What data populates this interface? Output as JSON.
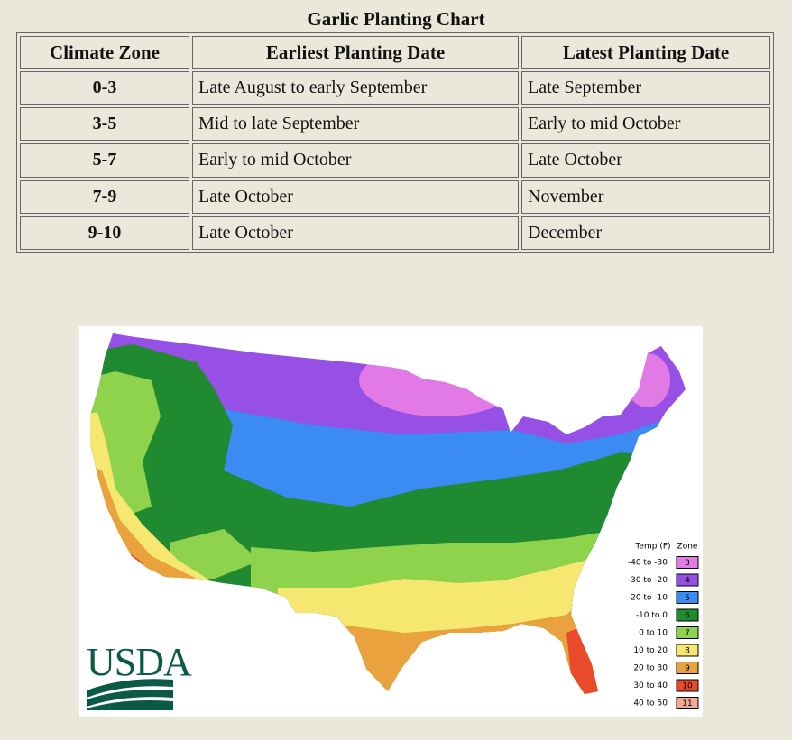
{
  "title": "Garlic Planting Chart",
  "table": {
    "headers": [
      "Climate Zone",
      "Earliest Planting Date",
      "Latest Planting Date"
    ],
    "rows": [
      [
        "0-3",
        "Late August to early September",
        "Late September"
      ],
      [
        "3-5",
        "Mid to late September",
        "Early to mid October"
      ],
      [
        "5-7",
        "Early to mid October",
        "Late October"
      ],
      [
        "7-9",
        "Late October",
        "November"
      ],
      [
        "9-10",
        "Late October",
        "December"
      ]
    ]
  },
  "map": {
    "logo": "USDA",
    "legend": {
      "temp_header": "Temp (F)",
      "zone_header": "Zone",
      "entries": [
        {
          "range": "-40 to -30",
          "zone": "3",
          "color": "#e27ae6"
        },
        {
          "range": "-30 to -20",
          "zone": "4",
          "color": "#9650e6"
        },
        {
          "range": "-20 to -10",
          "zone": "5",
          "color": "#3a8cf2"
        },
        {
          "range": "-10 to 0",
          "zone": "6",
          "color": "#1f8a30"
        },
        {
          "range": "0 to 10",
          "zone": "7",
          "color": "#8fd24c"
        },
        {
          "range": "10 to 20",
          "zone": "8",
          "color": "#f6e770"
        },
        {
          "range": "20 to 30",
          "zone": "9",
          "color": "#e9a23e"
        },
        {
          "range": "30 to 40",
          "zone": "10",
          "color": "#e84a2a"
        },
        {
          "range": "40 to 50",
          "zone": "11",
          "color": "#f2aa92"
        }
      ]
    }
  }
}
